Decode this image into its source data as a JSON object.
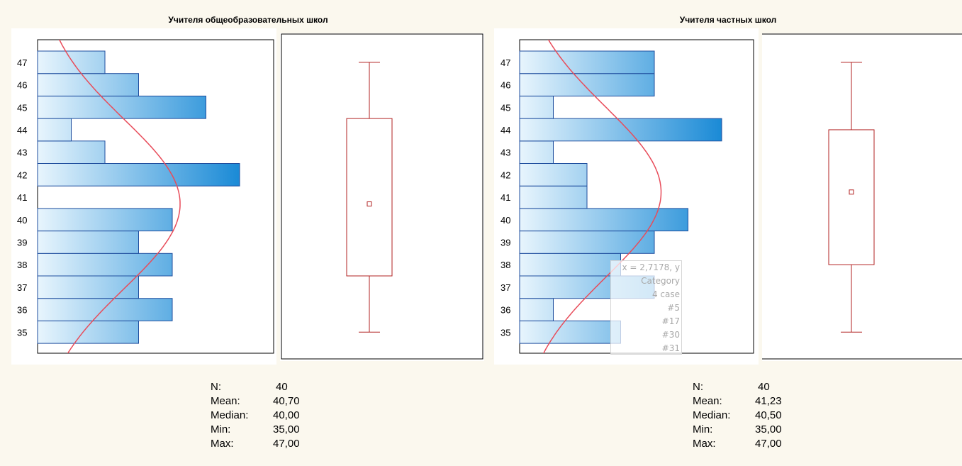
{
  "colors": {
    "bar_light": "#e8f5fd",
    "bar_dark": "#1a8ad6",
    "bar_border": "#1f4e9e",
    "curve": "#e84c5a",
    "box": "#b22222",
    "background": "#fbf8ee"
  },
  "chart_data": [
    {
      "type": "histogram",
      "title": "Учителя общеобразовательных школ",
      "orientation": "horizontal",
      "categories": [
        "35",
        "36",
        "37",
        "38",
        "39",
        "40",
        "41",
        "42",
        "43",
        "44",
        "45",
        "46",
        "47"
      ],
      "values": [
        3,
        4,
        3,
        4,
        3,
        4,
        0,
        6,
        2,
        1,
        5,
        3,
        2
      ],
      "normal_curve": true,
      "boxplot": {
        "min": 35,
        "q1": 37.5,
        "median": 40,
        "mean": 40.7,
        "q3": 44.5,
        "max": 47
      },
      "stats": {
        "labels": [
          "N:",
          "Mean:",
          "Median:",
          "Min:",
          "Max:"
        ],
        "values": [
          "40",
          "40,70",
          "40,00",
          "35,00",
          "47,00"
        ]
      }
    },
    {
      "type": "histogram",
      "title": "Учителя частных школ",
      "orientation": "horizontal",
      "categories": [
        "35",
        "36",
        "37",
        "38",
        "39",
        "40",
        "41",
        "42",
        "43",
        "44",
        "45",
        "46",
        "47"
      ],
      "values": [
        3,
        1,
        4,
        3,
        4,
        5,
        2,
        2,
        1,
        6,
        1,
        4,
        4
      ],
      "normal_curve": true,
      "boxplot": {
        "min": 35,
        "q1": 38,
        "median": 40.5,
        "mean": 41.23,
        "q3": 44,
        "max": 47
      },
      "stats": {
        "labels": [
          "N:",
          "Mean:",
          "Median:",
          "Min:",
          "Max:"
        ],
        "values": [
          "40",
          "41,23",
          "40,50",
          "35,00",
          "47,00"
        ]
      }
    }
  ],
  "tooltip": {
    "lines": [
      "x = 2,7178, y",
      "Category",
      "4 case",
      "#5",
      "#17",
      "#30",
      "#31"
    ]
  }
}
